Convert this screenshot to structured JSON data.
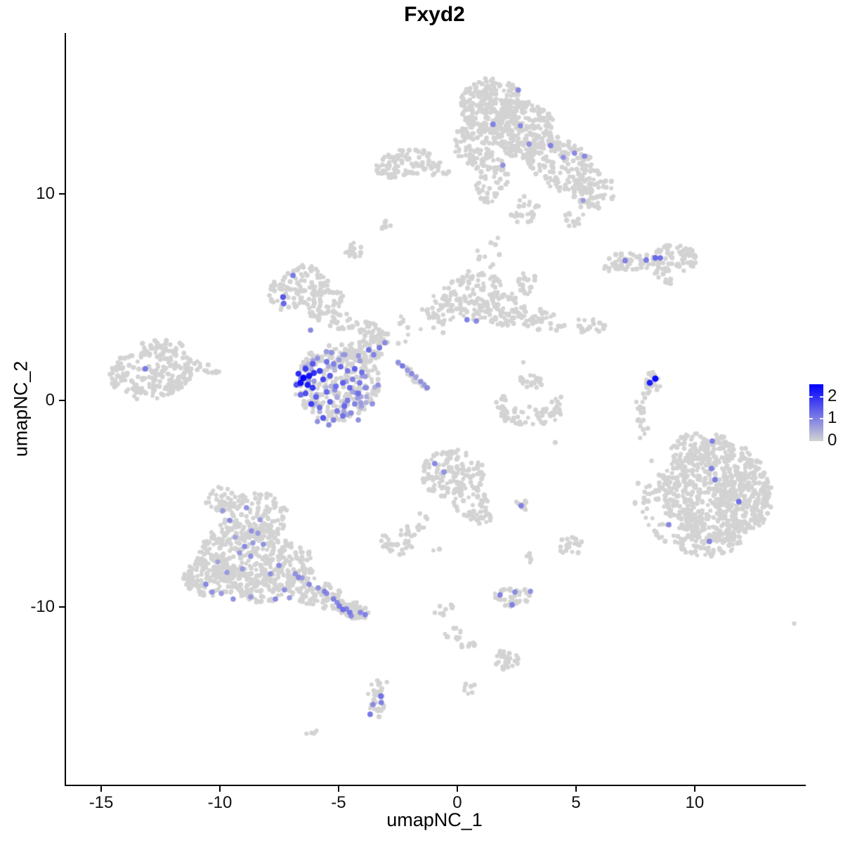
{
  "title": "Fxyd2",
  "axes": {
    "x": {
      "label": "umapNC_1",
      "ticks": [
        -15,
        -10,
        -5,
        0,
        5,
        10
      ]
    },
    "y": {
      "label": "umapNC_2",
      "ticks": [
        10,
        0,
        -10
      ]
    }
  },
  "legend": {
    "tick_values": [
      2,
      1,
      0
    ],
    "max_value": 2.57,
    "min_value": 0,
    "color_high": "#0000FF",
    "color_low": "#D3D3D3"
  },
  "colors": {
    "background": "#FFFFFF",
    "axis": "#000000",
    "point_gray": "#D3D3D3"
  },
  "chart_data": {
    "type": "scatter",
    "title": "Fxyd2",
    "xlabel": "umapNC_1",
    "ylabel": "umapNC_2",
    "xlim": [
      -16.5,
      14.6
    ],
    "ylim": [
      -18.6,
      17.8
    ],
    "grid": false,
    "legend_position": "right",
    "color_scale": {
      "low": "#D3D3D3",
      "high": "#0000FF",
      "domain": [
        0,
        2.57
      ]
    },
    "background_clusters": [
      [
        1.45,
        14.3,
        1.33,
        1.36,
        250,
        0
      ],
      [
        2.78,
        13.1,
        1.33,
        1.36,
        220,
        0
      ],
      [
        0.71,
        12.4,
        0.89,
        1.02,
        80,
        0
      ],
      [
        4.41,
        11.4,
        1.63,
        1.19,
        170,
        30
      ],
      [
        5.74,
        10.2,
        0.89,
        0.95,
        70,
        0
      ],
      [
        1.45,
        10.7,
        0.74,
        1.19,
        55,
        0
      ],
      [
        2.78,
        9.2,
        0.74,
        0.68,
        25,
        0
      ],
      [
        5.0,
        8.84,
        0.53,
        0.48,
        12,
        0
      ],
      [
        -2.25,
        11.5,
        1.33,
        0.68,
        90,
        -12
      ],
      [
        -0.77,
        11.2,
        0.44,
        0.41,
        14,
        0
      ],
      [
        -4.32,
        7.24,
        0.41,
        0.41,
        18,
        0
      ],
      [
        -3.05,
        8.43,
        0.24,
        0.27,
        6,
        0
      ],
      [
        -6.69,
        5.44,
        1.33,
        1.02,
        110,
        -25
      ],
      [
        -5.36,
        4.93,
        0.59,
        0.51,
        25,
        0
      ],
      [
        -5.21,
        4.01,
        1.18,
        0.51,
        50,
        20
      ],
      [
        -3.73,
        3.4,
        0.74,
        0.41,
        22,
        25
      ],
      [
        -5.06,
        0.85,
        1.83,
        1.87,
        270,
        0
      ],
      [
        -3.88,
        2.45,
        0.74,
        0.68,
        55,
        0
      ],
      [
        -3.28,
        3.06,
        0.44,
        0.41,
        22,
        0
      ],
      [
        -1.86,
        1.19,
        0.89,
        0.2,
        22,
        42
      ],
      [
        -1.66,
        3.4,
        1.18,
        0.95,
        12,
        0
      ],
      [
        0.71,
        5.1,
        1.33,
        1.19,
        120,
        0
      ],
      [
        -0.77,
        4.42,
        0.74,
        0.68,
        40,
        0
      ],
      [
        2.04,
        4.42,
        0.89,
        0.85,
        65,
        0
      ],
      [
        3.52,
        3.91,
        1.04,
        0.51,
        40,
        11
      ],
      [
        5.53,
        3.67,
        0.89,
        0.41,
        22,
        5
      ],
      [
        2.93,
        5.61,
        0.44,
        0.61,
        20,
        0
      ],
      [
        1.45,
        7.14,
        0.74,
        0.85,
        10,
        0
      ],
      [
        7.37,
        6.73,
        1.18,
        0.44,
        55,
        0
      ],
      [
        9.14,
        6.87,
        0.95,
        0.68,
        65,
        0
      ],
      [
        8.7,
        5.95,
        0.53,
        0.34,
        12,
        40
      ],
      [
        6.33,
        6.46,
        0.24,
        0.24,
        4,
        0
      ],
      [
        8.2,
        0.85,
        0.36,
        0.61,
        22,
        0
      ],
      [
        7.75,
        -0.34,
        0.3,
        0.75,
        18,
        0
      ],
      [
        7.84,
        -1.5,
        0.24,
        0.41,
        5,
        0
      ],
      [
        10.92,
        -4.42,
        2.22,
        2.55,
        550,
        0
      ],
      [
        10.33,
        -2.38,
        1.33,
        0.85,
        110,
        0
      ],
      [
        12.1,
        -4.76,
        1.18,
        1.7,
        140,
        0
      ],
      [
        8.85,
        -5.1,
        1.04,
        1.87,
        80,
        0
      ],
      [
        10.62,
        -6.8,
        1.33,
        0.85,
        90,
        0
      ],
      [
        7.96,
        -4.42,
        0.53,
        1.7,
        8,
        0
      ],
      [
        -12.9,
        1.36,
        1.78,
        1.29,
        200,
        -10
      ],
      [
        -10.98,
        1.53,
        0.59,
        0.41,
        22,
        0
      ],
      [
        -12.46,
        2.48,
        1.04,
        0.44,
        30,
        0
      ],
      [
        -10.3,
        1.33,
        0.3,
        0.24,
        5,
        0
      ],
      [
        -8.61,
        -5.61,
        1.48,
        1.19,
        140,
        0
      ],
      [
        -8.91,
        -7.48,
        2.07,
        1.53,
        260,
        0
      ],
      [
        -10.38,
        -8.5,
        1.18,
        1.02,
        110,
        0
      ],
      [
        -8.31,
        -8.84,
        1.48,
        0.95,
        120,
        0
      ],
      [
        -5.95,
        -9.35,
        1.33,
        0.68,
        100,
        21
      ],
      [
        -4.47,
        -10.13,
        0.74,
        0.44,
        55,
        18
      ],
      [
        -9.94,
        -4.76,
        0.74,
        0.61,
        35,
        0
      ],
      [
        -6.83,
        -7.82,
        0.89,
        0.85,
        65,
        0
      ],
      [
        -0.18,
        -3.57,
        1.33,
        1.19,
        140,
        0
      ],
      [
        0.56,
        -4.93,
        0.89,
        0.75,
        45,
        45
      ],
      [
        1.09,
        -5.68,
        0.36,
        0.34,
        12,
        0
      ],
      [
        2.75,
        -5.07,
        0.36,
        0.24,
        10,
        0
      ],
      [
        -1.69,
        -5.95,
        0.36,
        0.61,
        10,
        35
      ],
      [
        -2.46,
        -6.87,
        0.83,
        0.61,
        40,
        0
      ],
      [
        -0.86,
        -7.24,
        0.15,
        0.15,
        2,
        0
      ],
      [
        3.14,
        -0.75,
        1.33,
        0.48,
        55,
        0
      ],
      [
        1.89,
        -0.17,
        0.3,
        0.41,
        10,
        0
      ],
      [
        4.26,
        -0.17,
        0.3,
        0.41,
        8,
        0
      ],
      [
        3.08,
        0.85,
        0.53,
        0.41,
        22,
        0
      ],
      [
        4.76,
        -7.04,
        0.59,
        0.48,
        22,
        0
      ],
      [
        4.05,
        -1.97,
        0.12,
        0.12,
        1,
        0
      ],
      [
        2.28,
        -9.49,
        0.83,
        0.51,
        35,
        0
      ],
      [
        3.14,
        -7.65,
        0.24,
        0.34,
        5,
        0
      ],
      [
        -0.62,
        -10.2,
        0.3,
        0.54,
        10,
        60
      ],
      [
        -0.18,
        -11.32,
        0.36,
        0.48,
        12,
        0
      ],
      [
        0.56,
        -11.87,
        0.41,
        0.24,
        7,
        0
      ],
      [
        2.04,
        -12.58,
        0.71,
        0.48,
        30,
        17
      ],
      [
        0.53,
        -13.98,
        0.24,
        0.37,
        8,
        0
      ],
      [
        -3.43,
        -14.46,
        0.38,
        0.92,
        28,
        0
      ],
      [
        -6.04,
        -16.09,
        0.33,
        0.17,
        5,
        0
      ],
      [
        -3.08,
        -13.67,
        0.12,
        0.12,
        1,
        0
      ],
      [
        14.08,
        -10.82,
        0.12,
        0.12,
        1,
        0
      ],
      [
        5.44,
        9.45,
        0.3,
        0.3,
        4,
        0
      ],
      [
        2.75,
        1.73,
        0.12,
        0.12,
        1,
        0
      ],
      [
        2.1,
        0.07,
        0.2,
        0.2,
        2,
        0
      ]
    ],
    "expressing_clusters": [
      [
        -5.06,
        0.85,
        1.6,
        1.6,
        45,
        0,
        0.25,
        0.85
      ]
    ],
    "expressing_points": [
      [
        2.57,
        15.03,
        0.9
      ],
      [
        1.51,
        13.37,
        1.0
      ],
      [
        2.66,
        13.3,
        0.9
      ],
      [
        3.02,
        12.41,
        0.8
      ],
      [
        3.93,
        12.34,
        1.0
      ],
      [
        4.94,
        11.97,
        0.9
      ],
      [
        4.47,
        11.77,
        0.8
      ],
      [
        5.36,
        11.83,
        0.9
      ],
      [
        1.92,
        11.39,
        0.8
      ],
      [
        5.3,
        9.69,
        0.7
      ],
      [
        7.07,
        6.77,
        1.0
      ],
      [
        7.96,
        6.8,
        1.1
      ],
      [
        8.34,
        6.9,
        1.3
      ],
      [
        8.55,
        6.9,
        1.2
      ],
      [
        8.11,
        0.85,
        2.2
      ],
      [
        8.34,
        1.05,
        2.45
      ],
      [
        10.74,
        -1.97,
        1.0
      ],
      [
        10.71,
        -3.3,
        1.0
      ],
      [
        10.86,
        -3.84,
        1.1
      ],
      [
        11.86,
        -4.9,
        1.2
      ],
      [
        8.91,
        -6.02,
        0.9
      ],
      [
        10.62,
        -6.83,
        1.0
      ],
      [
        -13.14,
        1.53,
        1.1
      ],
      [
        -6.92,
        6.05,
        1.1
      ],
      [
        -7.34,
        5.0,
        1.5
      ],
      [
        -7.31,
        4.69,
        1.3
      ],
      [
        -6.18,
        3.4,
        0.9
      ],
      [
        0.41,
        3.91,
        1.0
      ],
      [
        0.8,
        3.84,
        0.9
      ],
      [
        -0.95,
        -3.06,
        0.9
      ],
      [
        -0.56,
        -3.47,
        0.8
      ],
      [
        2.69,
        -5.1,
        1.0
      ],
      [
        1.8,
        -9.42,
        1.0
      ],
      [
        2.43,
        -9.28,
        0.9
      ],
      [
        3.08,
        -9.25,
        0.8
      ],
      [
        2.31,
        -9.9,
        1.0
      ],
      [
        -3.22,
        -14.32,
        1.2
      ],
      [
        -3.2,
        -14.63,
        1.0
      ],
      [
        -3.55,
        -14.73,
        0.9
      ],
      [
        -3.67,
        -15.2,
        1.1
      ],
      [
        -2.49,
        1.84,
        0.8
      ],
      [
        -2.31,
        1.67,
        1.1
      ],
      [
        -2.1,
        1.46,
        0.7
      ],
      [
        -1.92,
        1.29,
        0.9
      ],
      [
        -1.75,
        1.12,
        0.6
      ],
      [
        -1.54,
        0.92,
        0.8
      ],
      [
        -1.39,
        0.75,
        0.7
      ],
      [
        -1.27,
        0.61,
        0.9
      ],
      [
        -6.48,
        1.09,
        2.57
      ],
      [
        -6.24,
        1.19,
        2.3
      ],
      [
        -6.04,
        1.33,
        2.0
      ],
      [
        -5.8,
        1.43,
        1.8
      ],
      [
        -6.6,
        0.85,
        2.4
      ],
      [
        -6.3,
        0.75,
        2.2
      ],
      [
        -6.09,
        0.61,
        1.9
      ],
      [
        -5.65,
        1.02,
        1.7
      ],
      [
        -5.36,
        1.19,
        1.5
      ],
      [
        -6.39,
        0.34,
        1.6
      ],
      [
        -5.95,
        0.17,
        1.4
      ],
      [
        -5.5,
        0.41,
        1.3
      ],
      [
        -6.15,
        -0.17,
        1.8
      ],
      [
        -5.8,
        -0.34,
        1.2
      ],
      [
        -5.36,
        -0.07,
        1.4
      ],
      [
        -5.06,
        -0.51,
        1.1
      ],
      [
        -4.76,
        -0.27,
        1.3
      ],
      [
        -5.65,
        -0.85,
        1.5
      ],
      [
        -5.21,
        -0.95,
        1.0
      ],
      [
        -4.82,
        -0.75,
        1.2
      ],
      [
        -4.47,
        -0.61,
        0.9
      ],
      [
        -4.62,
        0.0,
        1.1
      ],
      [
        -4.32,
        -0.17,
        1.0
      ],
      [
        -4.17,
        0.34,
        1.2
      ],
      [
        -4.53,
        0.61,
        1.3
      ],
      [
        -4.82,
        0.85,
        1.4
      ],
      [
        -5.12,
        0.68,
        1.2
      ],
      [
        -4.41,
        1.02,
        1.0
      ],
      [
        -4.11,
        0.85,
        1.1
      ],
      [
        -3.88,
        0.61,
        0.9
      ],
      [
        -4.02,
        1.36,
        1.2
      ],
      [
        -4.32,
        1.53,
        1.4
      ],
      [
        -4.62,
        1.43,
        1.1
      ],
      [
        -4.91,
        1.63,
        1.3
      ],
      [
        -5.21,
        1.77,
        1.0
      ],
      [
        -5.5,
        1.87,
        1.2
      ],
      [
        -6.09,
        1.77,
        1.5
      ],
      [
        -6.39,
        1.53,
        1.8
      ],
      [
        -6.69,
        1.29,
        2.0
      ],
      [
        -6.78,
        0.75,
        1.6
      ],
      [
        -6.6,
        0.27,
        1.3
      ],
      [
        -5.89,
        -1.02,
        0.8
      ],
      [
        -5.41,
        -1.19,
        0.9
      ],
      [
        -4.17,
        -0.95,
        0.8
      ],
      [
        -3.58,
        -0.17,
        0.8
      ],
      [
        -3.34,
        0.75,
        0.8
      ],
      [
        -3.52,
        2.21,
        1.0
      ],
      [
        -3.28,
        2.55,
        1.1
      ],
      [
        -3.05,
        2.79,
        0.9
      ],
      [
        -3.73,
        2.45,
        1.2
      ],
      [
        -4.82,
        2.21,
        0.7
      ],
      [
        -5.3,
        2.31,
        0.8
      ],
      [
        -8.88,
        -5.2,
        0.8
      ],
      [
        -9.59,
        -5.81,
        0.9
      ],
      [
        -8.67,
        -6.32,
        0.8
      ],
      [
        -8.4,
        -6.43,
        0.7
      ],
      [
        -8.96,
        -7.07,
        0.9
      ],
      [
        -8.61,
        -6.9,
        0.7
      ],
      [
        -8.17,
        -6.97,
        0.8
      ],
      [
        -9.17,
        -7.38,
        0.7
      ],
      [
        -8.7,
        -7.55,
        0.8
      ],
      [
        -7.51,
        -7.99,
        0.9
      ],
      [
        -7.87,
        -8.4,
        0.8
      ],
      [
        -9.7,
        -8.33,
        0.7
      ],
      [
        -10.59,
        -8.91,
        0.9
      ],
      [
        -10.33,
        -9.28,
        0.8
      ],
      [
        -9.94,
        -9.35,
        0.7
      ],
      [
        -9.44,
        -9.62,
        0.8
      ],
      [
        -8.7,
        -9.52,
        0.7
      ],
      [
        -7.66,
        -9.62,
        0.9
      ],
      [
        -6.83,
        -8.4,
        0.8
      ],
      [
        -6.69,
        -8.57,
        0.9
      ],
      [
        -6.54,
        -8.6,
        0.7
      ],
      [
        -6.24,
        -8.91,
        0.9
      ],
      [
        -5.86,
        -9.08,
        0.8
      ],
      [
        -5.59,
        -9.25,
        1.0
      ],
      [
        -5.5,
        -9.35,
        0.9
      ],
      [
        -5.21,
        -9.62,
        1.0
      ],
      [
        -5.06,
        -9.79,
        0.9
      ],
      [
        -4.97,
        -9.96,
        1.1
      ],
      [
        -4.67,
        -10.1,
        1.0
      ],
      [
        -4.53,
        -10.27,
        1.1
      ],
      [
        -4.08,
        -10.27,
        0.9
      ],
      [
        -3.88,
        -10.37,
        1.0
      ],
      [
        -4.47,
        -10.44,
        0.9
      ],
      [
        -4.82,
        -10.13,
        1.2
      ],
      [
        -9.88,
        -5.34,
        0.7
      ],
      [
        -9.35,
        -6.63,
        0.6
      ],
      [
        -8.31,
        -5.78,
        0.7
      ],
      [
        -10.09,
        -7.82,
        0.6
      ],
      [
        -9.05,
        -8.16,
        0.7
      ],
      [
        -7.28,
        -9.18,
        0.8
      ],
      [
        -7.07,
        -9.56,
        0.7
      ]
    ]
  }
}
